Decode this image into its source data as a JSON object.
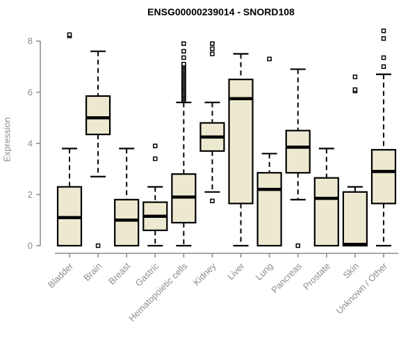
{
  "chart": {
    "title": "ENSG00000239014 - SNORD108",
    "ylabel": "Expression"
  },
  "style": {
    "box_fill": "#EDE8D0",
    "box_stroke": "#000000",
    "median_color": "#000000",
    "whisker_color": "#000000",
    "outlier_fill": "#ffffff",
    "axis_color": "#8c8c8c",
    "tick_label_color": "#8c8c8c",
    "title_color": "#000000",
    "background": "#ffffff"
  },
  "chart_data": {
    "type": "boxplot",
    "title": "ENSG00000239014 - SNORD108",
    "xlabel": "",
    "ylabel": "Expression",
    "ylim": [
      0,
      8.6
    ],
    "yticks": [
      0,
      2,
      4,
      6,
      8
    ],
    "grid": false,
    "legend": false,
    "categories": [
      "Bladder",
      "Brain",
      "Breast",
      "Gastric",
      "Hematopoietic cells",
      "Kidney",
      "Liver",
      "Lung",
      "Pancreas",
      "Prostate",
      "Skin",
      "Unknown / Other"
    ],
    "series": [
      {
        "name": "Bladder",
        "low": 0,
        "q1": 0,
        "median": 1.1,
        "q3": 2.3,
        "high": 3.8,
        "outliers": [
          8.2,
          8.25
        ]
      },
      {
        "name": "Brain",
        "low": 2.7,
        "q1": 4.35,
        "median": 5.0,
        "q3": 5.85,
        "high": 7.6,
        "outliers": [
          0.0
        ]
      },
      {
        "name": "Breast",
        "low": 0,
        "q1": 0,
        "median": 1.0,
        "q3": 1.8,
        "high": 3.8,
        "outliers": []
      },
      {
        "name": "Gastric",
        "low": 0,
        "q1": 0.6,
        "median": 1.15,
        "q3": 1.7,
        "high": 2.3,
        "outliers": [
          3.4,
          3.9
        ]
      },
      {
        "name": "Hematopoietic cells",
        "low": 0,
        "q1": 0.9,
        "median": 1.9,
        "q3": 2.8,
        "high": 5.6,
        "outliers": [
          5.7,
          5.75,
          5.8,
          5.85,
          5.9,
          5.95,
          6.0,
          6.05,
          6.1,
          6.15,
          6.2,
          6.25,
          6.3,
          6.35,
          6.4,
          6.45,
          6.5,
          6.55,
          6.6,
          6.65,
          6.7,
          6.75,
          6.8,
          6.85,
          6.9,
          6.95,
          7.0,
          7.05,
          7.1,
          7.35,
          7.6,
          7.9
        ]
      },
      {
        "name": "Kidney",
        "low": 2.1,
        "q1": 3.7,
        "median": 4.25,
        "q3": 4.8,
        "high": 5.6,
        "outliers": [
          1.75,
          7.5,
          7.7,
          7.9
        ]
      },
      {
        "name": "Liver",
        "low": 0,
        "q1": 1.65,
        "median": 5.75,
        "q3": 6.5,
        "high": 7.5,
        "outliers": []
      },
      {
        "name": "Lung",
        "low": 0,
        "q1": 0,
        "median": 2.2,
        "q3": 2.85,
        "high": 3.6,
        "outliers": [
          7.3
        ]
      },
      {
        "name": "Pancreas",
        "low": 1.8,
        "q1": 2.85,
        "median": 3.85,
        "q3": 4.5,
        "high": 6.9,
        "outliers": [
          0.0
        ]
      },
      {
        "name": "Prostate",
        "low": 0,
        "q1": 0,
        "median": 1.85,
        "q3": 2.65,
        "high": 3.8,
        "outliers": []
      },
      {
        "name": "Skin",
        "low": 0,
        "q1": 0,
        "median": 0.05,
        "q3": 2.1,
        "high": 2.3,
        "outliers": [
          6.05,
          6.1,
          6.6
        ]
      },
      {
        "name": "Unknown / Other",
        "low": 0,
        "q1": 1.65,
        "median": 2.9,
        "q3": 3.75,
        "high": 6.7,
        "outliers": [
          7.0,
          7.35,
          8.1,
          8.4
        ]
      }
    ]
  }
}
